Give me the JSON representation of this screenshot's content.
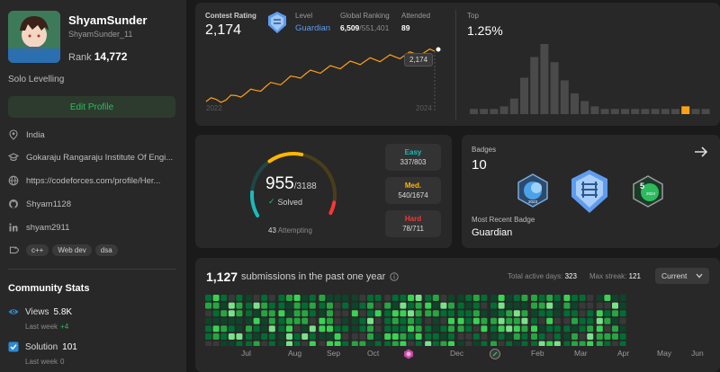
{
  "profile": {
    "name": "ShyamSunder",
    "handle": "ShyamSunder_11",
    "rank_label": "Rank",
    "rank_value": "14,772",
    "bio": "Solo Levelling",
    "edit_label": "Edit Profile",
    "location": "India",
    "school": "Gokaraju Rangaraju Institute Of Engi...",
    "website": "https://codeforces.com/profile/Her...",
    "github": "Shyam1128",
    "linkedin": "shyam2911",
    "skills": [
      "c++",
      "Web dev",
      "dsa"
    ]
  },
  "community": {
    "title": "Community Stats",
    "views_label": "Views",
    "views_value": "5.8K",
    "views_sub": "Last week",
    "views_delta": "+4",
    "solution_label": "Solution",
    "solution_value": "101",
    "solution_sub": "Last week",
    "solution_delta": "0"
  },
  "contest": {
    "rating_label": "Contest Rating",
    "rating_value": "2,174",
    "level_label": "Level",
    "level_value": "Guardian",
    "global_label": "Global Ranking",
    "global_value": "6,509",
    "global_total": "/551,401",
    "attended_label": "Attended",
    "attended_value": "89",
    "tooltip": "2,174",
    "axis_left": "2022",
    "axis_right": "2024",
    "top_label": "Top",
    "top_value": "1.25%",
    "histogram": [
      2,
      2,
      2,
      3,
      6,
      14,
      22,
      27,
      20,
      13,
      8,
      5,
      3,
      2,
      2,
      2,
      2,
      2,
      2,
      2,
      2,
      3,
      2,
      2
    ],
    "histogram_highlight_index": 21,
    "rating_series": [
      {
        "x": "2022",
        "y": 1500
      },
      {
        "x": "",
        "y": 1530
      },
      {
        "x": "",
        "y": 1520
      },
      {
        "x": "",
        "y": 1580
      },
      {
        "x": "",
        "y": 1610
      },
      {
        "x": "",
        "y": 1650
      },
      {
        "x": "",
        "y": 1700
      },
      {
        "x": "",
        "y": 1740
      },
      {
        "x": "",
        "y": 1780
      },
      {
        "x": "",
        "y": 1830
      },
      {
        "x": "",
        "y": 1870
      },
      {
        "x": "",
        "y": 1900
      },
      {
        "x": "",
        "y": 1930
      },
      {
        "x": "",
        "y": 1960
      },
      {
        "x": "",
        "y": 1990
      },
      {
        "x": "",
        "y": 2020
      },
      {
        "x": "",
        "y": 2040
      },
      {
        "x": "",
        "y": 2060
      },
      {
        "x": "",
        "y": 2080
      },
      {
        "x": "",
        "y": 2100
      },
      {
        "x": "",
        "y": 2120
      },
      {
        "x": "",
        "y": 2140
      },
      {
        "x": "",
        "y": 2160
      },
      {
        "x": "2024",
        "y": 2174
      }
    ]
  },
  "solved": {
    "value": "955",
    "total": "/3188",
    "solved_label": "Solved",
    "attempting_value": "43",
    "attempting_label": "Attempting",
    "easy_label": "Easy",
    "easy_value": "337/803",
    "medium_label": "Med.",
    "medium_value": "540/1674",
    "hard_label": "Hard",
    "hard_value": "78/711",
    "easy_fraction": 0.353,
    "medium_fraction": 0.565,
    "hard_fraction": 0.082
  },
  "badges": {
    "title": "Badges",
    "count": "10",
    "recent_label": "Most Recent Badge",
    "recent_value": "Guardian",
    "names": [
      "annual-badge-icon",
      "guardian-badge-icon",
      "day-streak-badge-icon"
    ]
  },
  "submissions": {
    "count": "1,127",
    "label": "submissions in the past one year",
    "active_days_label": "Total active days:",
    "active_days_value": "323",
    "streak_label": "Max streak:",
    "streak_value": "121",
    "dropdown_value": "Current",
    "months": [
      "Jul",
      "Aug",
      "Sep",
      "Oct",
      "",
      "Dec",
      "",
      "Feb",
      "Mar",
      "Apr",
      "May",
      "Jun"
    ]
  },
  "colors": {
    "accent_green": "#2cbb5d",
    "easy": "#1cbaba",
    "medium": "#ffb700",
    "hard": "#f63737",
    "guardian_blue": "#5d9cf0",
    "rating_line": "#ffa116"
  }
}
